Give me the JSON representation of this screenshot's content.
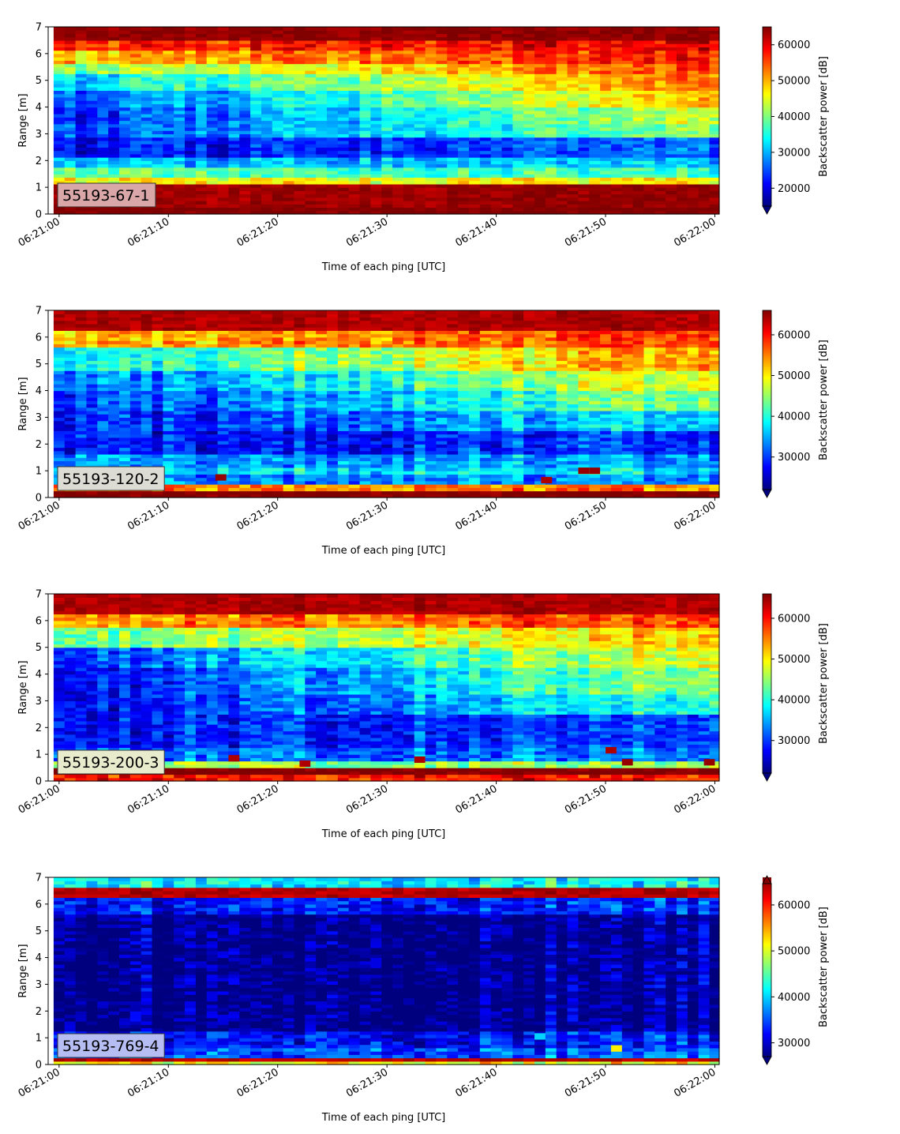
{
  "colormap": {
    "name": "jet",
    "stops": [
      "#00007f",
      "#0000ff",
      "#007fff",
      "#00ffff",
      "#7fff7f",
      "#ffff00",
      "#ff7f00",
      "#ff0000",
      "#7f0000"
    ]
  },
  "chart_data": [
    {
      "type": "heatmap",
      "label": "55193-67-1",
      "label_box_color": "#d9a7a7",
      "xlabel": "Time of each ping [UTC]",
      "ylabel": "Range [m]",
      "x_range": [
        "06:21:00",
        "06:22:00"
      ],
      "x_ticks": [
        "06:21:00",
        "06:21:10",
        "06:21:20",
        "06:21:30",
        "06:21:40",
        "06:21:50",
        "06:22:00"
      ],
      "ylim": [
        0,
        7
      ],
      "y_ticks": [
        "0",
        "1",
        "2",
        "3",
        "4",
        "5",
        "6",
        "7"
      ],
      "colorbar": {
        "label": "Backscatter power [dB]",
        "range": [
          15000,
          65000
        ],
        "ticks": [
          "20000",
          "30000",
          "40000",
          "50000",
          "60000"
        ],
        "extend": "min"
      },
      "bands": [
        {
          "from": 0.0,
          "to": 0.2,
          "value_start": 65000,
          "value_end": 65000
        },
        {
          "from": 0.2,
          "to": 1.1,
          "value_start": 63000,
          "value_end": 64000
        },
        {
          "from": 1.1,
          "to": 1.4,
          "value_start": 46000,
          "value_end": 46000
        },
        {
          "from": 1.4,
          "to": 1.8,
          "value_start": 38000,
          "value_end": 36000
        },
        {
          "from": 1.8,
          "to": 2.1,
          "value_start": 30000,
          "value_end": 31000
        },
        {
          "from": 2.1,
          "to": 2.9,
          "value_start": 21000,
          "value_end": 26000
        },
        {
          "from": 2.9,
          "to": 3.4,
          "value_start": 24000,
          "value_end": 40000
        },
        {
          "from": 3.4,
          "to": 4.0,
          "value_start": 22000,
          "value_end": 44000
        },
        {
          "from": 4.0,
          "to": 4.6,
          "value_start": 24000,
          "value_end": 50000
        },
        {
          "from": 4.6,
          "to": 5.2,
          "value_start": 31000,
          "value_end": 53000
        },
        {
          "from": 5.2,
          "to": 5.6,
          "value_start": 40000,
          "value_end": 55000
        },
        {
          "from": 5.6,
          "to": 6.1,
          "value_start": 49000,
          "value_end": 58000
        },
        {
          "from": 6.1,
          "to": 6.5,
          "value_start": 56000,
          "value_end": 60000
        },
        {
          "from": 6.5,
          "to": 7.0,
          "value_start": 64000,
          "value_end": 64000
        }
      ],
      "hotspots": []
    },
    {
      "type": "heatmap",
      "label": "55193-120-2",
      "label_box_color": "#dcdcd4",
      "xlabel": "Time of each ping [UTC]",
      "ylabel": "Range [m]",
      "x_range": [
        "06:21:00",
        "06:22:00"
      ],
      "x_ticks": [
        "06:21:00",
        "06:21:10",
        "06:21:20",
        "06:21:30",
        "06:21:40",
        "06:21:50",
        "06:22:00"
      ],
      "ylim": [
        0,
        7
      ],
      "y_ticks": [
        "0",
        "1",
        "2",
        "3",
        "4",
        "5",
        "6",
        "7"
      ],
      "colorbar": {
        "label": "Backscatter power [dB]",
        "range": [
          22000,
          66000
        ],
        "ticks": [
          "30000",
          "40000",
          "50000",
          "60000"
        ],
        "extend": "min"
      },
      "bands": [
        {
          "from": 0.0,
          "to": 0.3,
          "value_start": 66000,
          "value_end": 66000
        },
        {
          "from": 0.3,
          "to": 0.5,
          "value_start": 55000,
          "value_end": 55000
        },
        {
          "from": 0.5,
          "to": 0.9,
          "value_start": 33000,
          "value_end": 34000
        },
        {
          "from": 0.9,
          "to": 1.1,
          "value_start": 38000,
          "value_end": 38000
        },
        {
          "from": 1.1,
          "to": 1.6,
          "value_start": 34000,
          "value_end": 35000
        },
        {
          "from": 1.6,
          "to": 2.5,
          "value_start": 28000,
          "value_end": 30000
        },
        {
          "from": 2.5,
          "to": 3.2,
          "value_start": 28000,
          "value_end": 38000
        },
        {
          "from": 3.2,
          "to": 4.0,
          "value_start": 29000,
          "value_end": 45000
        },
        {
          "from": 4.0,
          "to": 4.8,
          "value_start": 31000,
          "value_end": 50000
        },
        {
          "from": 4.8,
          "to": 5.6,
          "value_start": 38000,
          "value_end": 55000
        },
        {
          "from": 5.6,
          "to": 6.2,
          "value_start": 52000,
          "value_end": 59000
        },
        {
          "from": 6.2,
          "to": 7.0,
          "value_start": 64000,
          "value_end": 64000
        }
      ],
      "hotspots": [
        {
          "x": 14.8,
          "y": 0.75,
          "value": 65000
        },
        {
          "x": 44.6,
          "y": 0.65,
          "value": 64000
        },
        {
          "x": 48.0,
          "y": 1.0,
          "value": 65000
        },
        {
          "x": 49.0,
          "y": 1.0,
          "value": 65000
        }
      ]
    },
    {
      "type": "heatmap",
      "label": "55193-200-3",
      "label_box_color": "#e8eccc",
      "xlabel": "Time of each ping [UTC]",
      "ylabel": "Range [m]",
      "x_range": [
        "06:21:00",
        "06:22:00"
      ],
      "x_ticks": [
        "06:21:00",
        "06:21:10",
        "06:21:20",
        "06:21:30",
        "06:21:40",
        "06:21:50",
        "06:22:00"
      ],
      "ylim": [
        0,
        7
      ],
      "y_ticks": [
        "0",
        "1",
        "2",
        "3",
        "4",
        "5",
        "6",
        "7"
      ],
      "colorbar": {
        "label": "Backscatter power [dB]",
        "range": [
          22000,
          66000
        ],
        "ticks": [
          "30000",
          "40000",
          "50000",
          "60000"
        ],
        "extend": "min"
      },
      "bands": [
        {
          "from": 0.0,
          "to": 0.2,
          "value_start": 60000,
          "value_end": 60000
        },
        {
          "from": 0.2,
          "to": 0.45,
          "value_start": 66000,
          "value_end": 66000
        },
        {
          "from": 0.45,
          "to": 0.8,
          "value_start": 46000,
          "value_end": 45000
        },
        {
          "from": 0.8,
          "to": 1.3,
          "value_start": 32000,
          "value_end": 33000
        },
        {
          "from": 1.3,
          "to": 2.5,
          "value_start": 28000,
          "value_end": 31000
        },
        {
          "from": 2.5,
          "to": 3.3,
          "value_start": 27000,
          "value_end": 41000
        },
        {
          "from": 3.3,
          "to": 4.2,
          "value_start": 27000,
          "value_end": 46000
        },
        {
          "from": 4.2,
          "to": 5.0,
          "value_start": 30000,
          "value_end": 50000
        },
        {
          "from": 5.0,
          "to": 5.7,
          "value_start": 43000,
          "value_end": 53000
        },
        {
          "from": 5.7,
          "to": 6.3,
          "value_start": 54000,
          "value_end": 58000
        },
        {
          "from": 6.3,
          "to": 7.0,
          "value_start": 64000,
          "value_end": 64000
        }
      ],
      "hotspots": [
        {
          "x": 16.0,
          "y": 0.85,
          "value": 64000
        },
        {
          "x": 22.5,
          "y": 0.65,
          "value": 64000
        },
        {
          "x": 33.0,
          "y": 0.8,
          "value": 64000
        },
        {
          "x": 50.5,
          "y": 1.15,
          "value": 64000
        },
        {
          "x": 52.0,
          "y": 0.7,
          "value": 65000
        },
        {
          "x": 59.5,
          "y": 0.7,
          "value": 65000
        }
      ]
    },
    {
      "type": "heatmap",
      "label": "55193-769-4",
      "label_box_color": "#b5bdf2",
      "xlabel": "Time of each ping [UTC]",
      "ylabel": "Range [m]",
      "x_range": [
        "06:21:00",
        "06:22:00"
      ],
      "x_ticks": [
        "06:21:00",
        "06:21:10",
        "06:21:20",
        "06:21:30",
        "06:21:40",
        "06:21:50",
        "06:22:00"
      ],
      "ylim": [
        0,
        7
      ],
      "y_ticks": [
        "0",
        "1",
        "2",
        "3",
        "4",
        "5",
        "6",
        "7"
      ],
      "colorbar": {
        "label": "Backscatter power [dB]",
        "range": [
          27000,
          66000
        ],
        "ticks": [
          "30000",
          "40000",
          "50000",
          "60000"
        ],
        "extend": "both"
      },
      "bands": [
        {
          "from": 0.0,
          "to": 0.15,
          "value_start": 52000,
          "value_end": 52000
        },
        {
          "from": 0.15,
          "to": 0.3,
          "value_start": 64000,
          "value_end": 64000
        },
        {
          "from": 0.3,
          "to": 0.6,
          "value_start": 36000,
          "value_end": 36000
        },
        {
          "from": 0.6,
          "to": 1.2,
          "value_start": 33000,
          "value_end": 33000
        },
        {
          "from": 1.2,
          "to": 5.6,
          "value_start": 28000,
          "value_end": 28000
        },
        {
          "from": 5.6,
          "to": 6.3,
          "value_start": 33000,
          "value_end": 34000
        },
        {
          "from": 6.3,
          "to": 6.65,
          "value_start": 64000,
          "value_end": 64000
        },
        {
          "from": 6.65,
          "to": 7.0,
          "value_start": 42000,
          "value_end": 42000
        }
      ],
      "hotspots": [
        {
          "x": 51.0,
          "y": 0.6,
          "value": 52000
        },
        {
          "x": 44.0,
          "y": 1.05,
          "value": 40000
        }
      ]
    }
  ]
}
